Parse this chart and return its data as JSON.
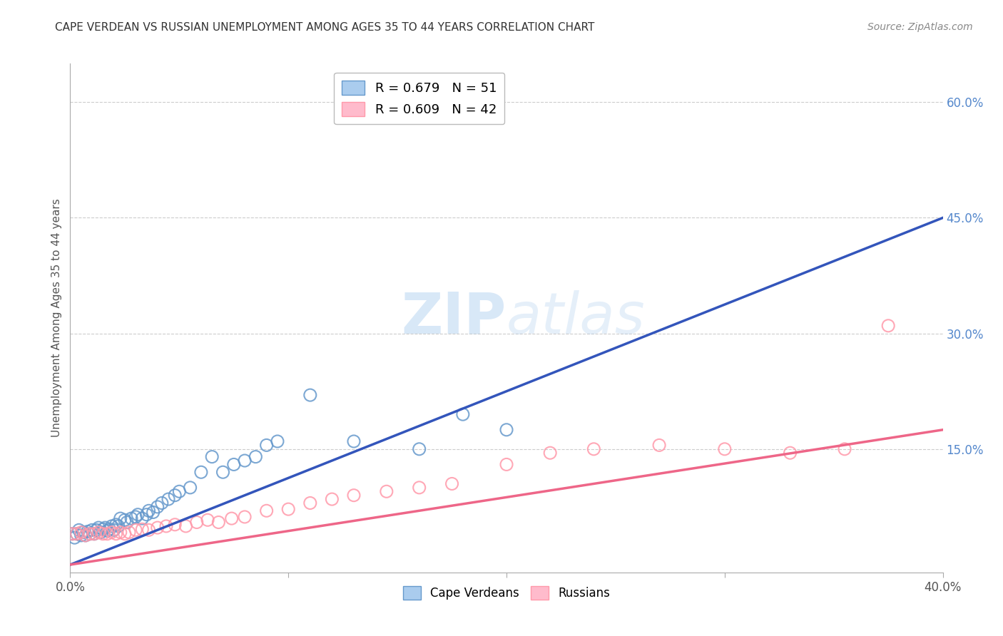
{
  "title": "CAPE VERDEAN VS RUSSIAN UNEMPLOYMENT AMONG AGES 35 TO 44 YEARS CORRELATION CHART",
  "source": "Source: ZipAtlas.com",
  "ylabel": "Unemployment Among Ages 35 to 44 years",
  "xlim": [
    0.0,
    0.4
  ],
  "ylim": [
    -0.01,
    0.65
  ],
  "x_ticks": [
    0.0,
    0.1,
    0.2,
    0.3,
    0.4
  ],
  "x_tick_labels": [
    "0.0%",
    "",
    "",
    "",
    "40.0%"
  ],
  "y_tick_labels_right": [
    "",
    "15.0%",
    "30.0%",
    "45.0%",
    "60.0%"
  ],
  "y_ticks_right": [
    0.0,
    0.15,
    0.3,
    0.45,
    0.6
  ],
  "cape_verdean_color": "#6699cc",
  "russian_color": "#ff99aa",
  "cv_line_color": "#3355bb",
  "ru_line_color": "#ee6688",
  "watermark": "ZIPatlas",
  "background_color": "#ffffff",
  "grid_color": "#cccccc",
  "cv_R": 0.679,
  "cv_N": 51,
  "ru_R": 0.609,
  "ru_N": 42,
  "cv_scatter_x": [
    0.001,
    0.002,
    0.003,
    0.004,
    0.005,
    0.006,
    0.007,
    0.008,
    0.009,
    0.01,
    0.011,
    0.012,
    0.013,
    0.014,
    0.015,
    0.016,
    0.017,
    0.018,
    0.019,
    0.02,
    0.021,
    0.022,
    0.023,
    0.025,
    0.026,
    0.028,
    0.03,
    0.031,
    0.033,
    0.035,
    0.036,
    0.038,
    0.04,
    0.042,
    0.045,
    0.048,
    0.05,
    0.055,
    0.06,
    0.065,
    0.07,
    0.075,
    0.08,
    0.085,
    0.09,
    0.095,
    0.11,
    0.13,
    0.16,
    0.18,
    0.2
  ],
  "cv_scatter_y": [
    0.04,
    0.035,
    0.04,
    0.045,
    0.038,
    0.042,
    0.038,
    0.043,
    0.04,
    0.045,
    0.04,
    0.045,
    0.048,
    0.042,
    0.046,
    0.048,
    0.044,
    0.046,
    0.05,
    0.045,
    0.052,
    0.05,
    0.06,
    0.058,
    0.055,
    0.06,
    0.062,
    0.065,
    0.06,
    0.065,
    0.07,
    0.068,
    0.075,
    0.08,
    0.085,
    0.09,
    0.095,
    0.1,
    0.12,
    0.14,
    0.12,
    0.13,
    0.135,
    0.14,
    0.155,
    0.16,
    0.22,
    0.16,
    0.15,
    0.195,
    0.175
  ],
  "ru_scatter_x": [
    0.001,
    0.003,
    0.005,
    0.007,
    0.009,
    0.011,
    0.013,
    0.015,
    0.017,
    0.019,
    0.021,
    0.023,
    0.025,
    0.027,
    0.03,
    0.033,
    0.036,
    0.04,
    0.044,
    0.048,
    0.053,
    0.058,
    0.063,
    0.068,
    0.074,
    0.08,
    0.09,
    0.1,
    0.11,
    0.12,
    0.13,
    0.145,
    0.16,
    0.175,
    0.2,
    0.22,
    0.24,
    0.27,
    0.3,
    0.33,
    0.355,
    0.375
  ],
  "ru_scatter_y": [
    0.04,
    0.04,
    0.042,
    0.038,
    0.04,
    0.04,
    0.042,
    0.04,
    0.04,
    0.042,
    0.04,
    0.042,
    0.04,
    0.042,
    0.045,
    0.046,
    0.045,
    0.048,
    0.05,
    0.052,
    0.05,
    0.055,
    0.058,
    0.055,
    0.06,
    0.062,
    0.07,
    0.072,
    0.08,
    0.085,
    0.09,
    0.095,
    0.1,
    0.105,
    0.13,
    0.145,
    0.15,
    0.155,
    0.15,
    0.145,
    0.15,
    0.31
  ],
  "cv_line_x": [
    0.0,
    0.4
  ],
  "cv_line_y": [
    0.0,
    0.45
  ],
  "ru_line_x": [
    0.0,
    0.4
  ],
  "ru_line_y": [
    0.0,
    0.175
  ]
}
